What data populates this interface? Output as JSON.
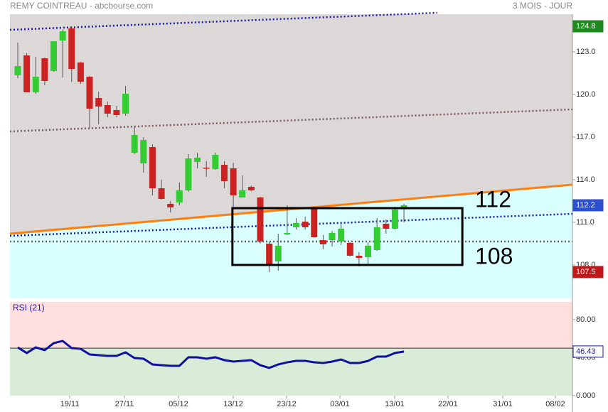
{
  "chart_data": [
    {
      "type": "candlestick",
      "title": "REMY COINTREAU - abcbourse.com",
      "subtitle": "3 MOIS - JOUR",
      "open": [
        121.35,
        122.75,
        120.15,
        122.55,
        121.65,
        123.8,
        124.65,
        122.25,
        121.25,
        119.75,
        119.25,
        118.9,
        118.65,
        115.9,
        115.15,
        116.3,
        113.4,
        112.3,
        112.4,
        113.25,
        115.25,
        114.85,
        114.75,
        115.05,
        114.8,
        112.75,
        113.5,
        112.75,
        109.5,
        108.25,
        110.15,
        110.65,
        111.05,
        111.95,
        109.75,
        109.75,
        109.65,
        109.55,
        108.65,
        108.55,
        109.05,
        110.9,
        110.55,
        112.0
      ],
      "high": [
        123.65,
        122.9,
        122.65,
        122.6,
        123.75,
        124.55,
        124.8,
        122.3,
        121.3,
        120.2,
        119.5,
        119.2,
        120.6,
        117.75,
        117.0,
        116.5,
        114.0,
        112.5,
        113.8,
        115.8,
        115.9,
        115.3,
        115.9,
        115.3,
        115.2,
        114.3,
        113.6,
        112.8,
        109.6,
        110.2,
        112.2,
        111.3,
        111.4,
        112.1,
        110.1,
        110.4,
        110.9,
        109.6,
        108.9,
        109.6,
        111.3,
        111.2,
        112.1,
        112.3
      ],
      "low": [
        121.15,
        120.15,
        120.05,
        120.65,
        121.6,
        121.2,
        120.9,
        120.75,
        117.65,
        117.9,
        118.4,
        118.4,
        118.5,
        115.8,
        114.5,
        112.9,
        112.6,
        111.7,
        112.2,
        113.15,
        114.8,
        114.2,
        114.7,
        113.4,
        112.1,
        112.75,
        113.2,
        109.5,
        107.5,
        107.6,
        110.1,
        110.5,
        110.5,
        109.9,
        109.1,
        109.3,
        109.4,
        108.6,
        107.9,
        108.0,
        109.0,
        110.2,
        110.5,
        111.0
      ],
      "close": [
        122.0,
        120.15,
        121.25,
        120.95,
        123.75,
        124.45,
        121.8,
        120.9,
        119.0,
        119.15,
        118.65,
        118.55,
        120.05,
        117.15,
        116.8,
        113.4,
        112.65,
        112.05,
        113.25,
        115.5,
        115.55,
        114.8,
        115.75,
        113.9,
        112.9,
        113.25,
        113.25,
        109.65,
        108.05,
        109.35,
        110.25,
        110.95,
        110.65,
        109.95,
        109.45,
        110.25,
        110.55,
        108.65,
        108.5,
        109.35,
        110.65,
        110.55,
        111.9,
        112.2
      ],
      "up_color": "#33cc33",
      "down_color": "#cc2222",
      "ylim": [
        105.65,
        125.65
      ],
      "yticks": [
        {
          "value": 108,
          "label": "108.0"
        },
        {
          "value": 111,
          "label": "111.0"
        },
        {
          "value": 114,
          "label": "114.0"
        },
        {
          "value": 117,
          "label": "117.0"
        },
        {
          "value": 120,
          "label": "120.0"
        },
        {
          "value": 123,
          "label": "123.0"
        }
      ],
      "xlim": [
        -0.87,
        61.76
      ],
      "xticks": [
        {
          "value": 5.78,
          "label": "19/11"
        },
        {
          "value": 11.88,
          "label": "27/11"
        },
        {
          "value": 17.89,
          "label": "05/12"
        },
        {
          "value": 23.99,
          "label": "13/12"
        },
        {
          "value": 29.93,
          "label": "23/12"
        },
        {
          "value": 35.87,
          "label": "03/01"
        },
        {
          "value": 41.96,
          "label": "13/01"
        },
        {
          "value": 47.9,
          "label": "22/01"
        },
        {
          "value": 54.0,
          "label": "31/01"
        },
        {
          "value": 59.86,
          "label": "08/02"
        }
      ],
      "trendlines": [
        {
          "x": [
            -0.87,
            46.7
          ],
          "y": [
            124.55,
            125.75
          ],
          "color": "#1a1aa6",
          "style": "dotted"
        },
        {
          "x": [
            -0.87,
            61.76
          ],
          "y": [
            117.4,
            118.95
          ],
          "color": "#7a5a5a",
          "style": "dotted"
        },
        {
          "x": [
            -0.87,
            61.76
          ],
          "y": [
            110.2,
            113.65
          ],
          "color": "#ff7f0e",
          "style": "solid"
        },
        {
          "x": [
            -0.87,
            61.76
          ],
          "y": [
            110.05,
            111.6
          ],
          "color": "#1a1aa6",
          "style": "dotted"
        },
        {
          "x": [
            -0.87,
            61.76
          ],
          "y": [
            109.65,
            109.65
          ],
          "color": "#666666",
          "style": "dotted"
        }
      ],
      "box": {
        "x": [
          23.9,
          49.5
        ],
        "top": 112,
        "bottom": 108
      }
    },
    {
      "type": "line",
      "title": "RSI (21)",
      "color": "#1010a0",
      "values": [
        50.8,
        44.9,
        50.8,
        47.9,
        55.3,
        57.6,
        50.1,
        49.3,
        43.4,
        42.6,
        41.9,
        41.9,
        45.6,
        39.6,
        38.9,
        32.9,
        32.1,
        31.4,
        31.4,
        40.4,
        40.4,
        38.9,
        40.4,
        37.4,
        35.9,
        36.6,
        37.4,
        32.1,
        29.2,
        32.9,
        35.1,
        36.6,
        36.6,
        35.1,
        34.4,
        35.9,
        38.1,
        34.4,
        34.4,
        36.6,
        41.1,
        41.1,
        44.9,
        46.43
      ],
      "ylim": [
        0,
        98.7
      ],
      "yticks": [
        {
          "value": 0,
          "label": "0.000"
        },
        {
          "value": 40,
          "label": "40.00"
        },
        {
          "value": 80,
          "label": "80.00"
        }
      ],
      "mid": 50
    }
  ]
}
